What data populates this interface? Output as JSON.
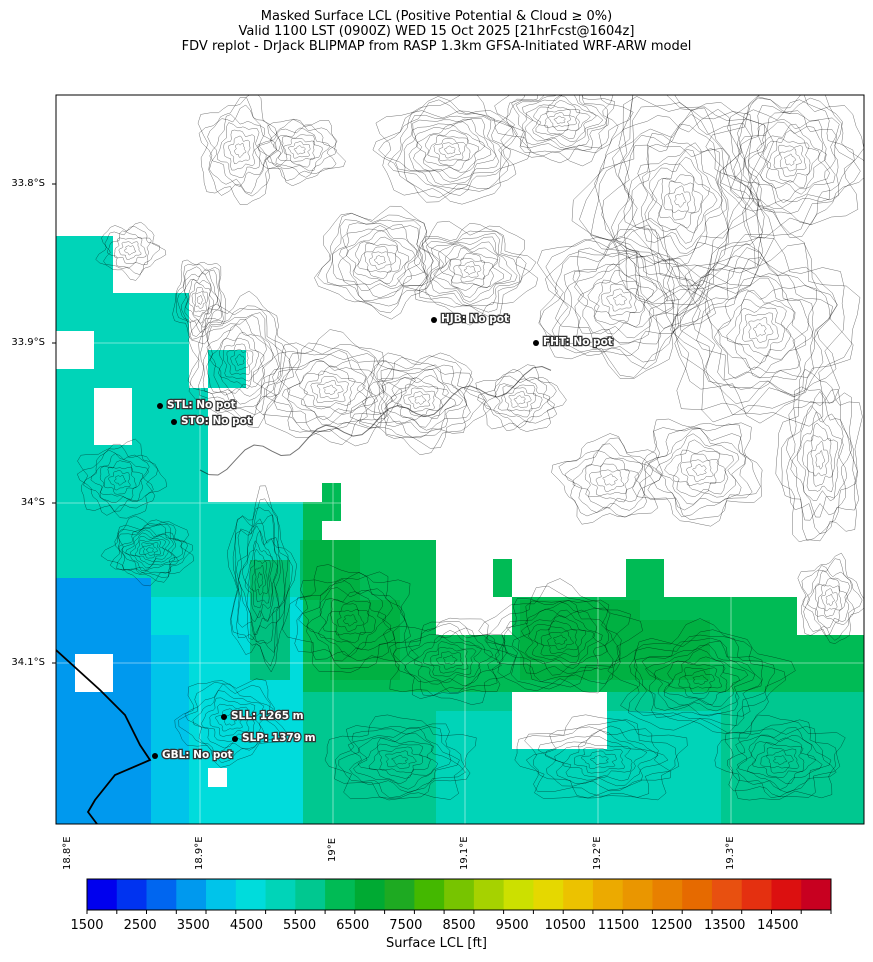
{
  "titles": {
    "line1": "Masked Surface LCL (Positive Potential & Cloud ≥ 0%)",
    "line2": "Valid 1100 LST (0900Z) WED 15 Oct 2025 [21hrFcst@1604z]",
    "line3": "FDV replot - DrJack BLIPMAP from RASP 1.3km GFSA-Initiated WRF-ARW model"
  },
  "axes": {
    "lat_labels": [
      "33.8°S",
      "33.9°S",
      "34°S",
      "34.1°S"
    ],
    "lon_labels": [
      "18.8°E",
      "18.9°E",
      "19°E",
      "19.1°E",
      "19.2°E",
      "19.3°E"
    ]
  },
  "colorbar": {
    "label": "Surface LCL [ft]",
    "tick_labels": [
      "1500",
      "2500",
      "3500",
      "4500",
      "5500",
      "6500",
      "7500",
      "8500",
      "9500",
      "10500",
      "11500",
      "12500",
      "13500",
      "14500"
    ],
    "colors": [
      "#0000ee",
      "#0033f0",
      "#0066f0",
      "#0099ee",
      "#00c4ea",
      "#00dcdc",
      "#00d4b8",
      "#00c890",
      "#00bb55",
      "#00aa33",
      "#1eaa22",
      "#44b800",
      "#77c400",
      "#a6d200",
      "#cce000",
      "#e5d800",
      "#ecc200",
      "#ecaa00",
      "#ea9600",
      "#e88000",
      "#e66a00",
      "#e85010",
      "#e43010",
      "#dc1010",
      "#c80020"
    ]
  },
  "stations": [
    {
      "code": "HJB",
      "label": "HJB: No pot"
    },
    {
      "code": "FHT",
      "label": "FHT: No pot"
    },
    {
      "code": "STL",
      "label": "STL: No pot"
    },
    {
      "code": "STO",
      "label": "STO: No pot"
    },
    {
      "code": "SLL",
      "label": "SLL: 1265 m"
    },
    {
      "code": "SLP",
      "label": "SLP: 1379 m"
    },
    {
      "code": "GBL",
      "label": "GBL: No pot"
    }
  ]
}
